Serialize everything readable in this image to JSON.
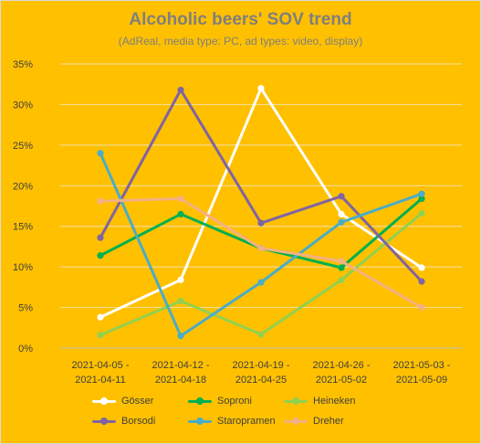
{
  "chart_data": {
    "type": "line",
    "title": "Alcoholic beers' SOV trend",
    "subtitle": "(AdReal, media type: PC, ad types: video, display)",
    "categories": [
      [
        "2021-04-05 -",
        "2021-04-11"
      ],
      [
        "2021-04-12 -",
        "2021-04-18"
      ],
      [
        "2021-04-19 -",
        "2021-04-25"
      ],
      [
        "2021-04-26 -",
        "2021-05-02"
      ],
      [
        "2021-05-03 -",
        "2021-05-09"
      ]
    ],
    "y_ticks": [
      "0%",
      "5%",
      "10%",
      "15%",
      "20%",
      "25%",
      "30%",
      "35%"
    ],
    "ylim": [
      0,
      35
    ],
    "y_unit": "%",
    "grid": true,
    "legend_position": "bottom",
    "series": [
      {
        "name": "Gösser",
        "color": "#FFFFFF",
        "values": [
          3.8,
          8.4,
          32.0,
          16.5,
          9.9
        ]
      },
      {
        "name": "Soproni",
        "color": "#00B050",
        "values": [
          11.4,
          16.5,
          12.3,
          9.9,
          18.4
        ]
      },
      {
        "name": "Heineken",
        "color": "#92D050",
        "values": [
          1.6,
          5.8,
          1.7,
          8.4,
          16.6
        ]
      },
      {
        "name": "Borsodi",
        "color": "#8064A2",
        "values": [
          13.6,
          31.8,
          15.4,
          18.7,
          8.2
        ]
      },
      {
        "name": "Staropramen",
        "color": "#4BACC6",
        "values": [
          24.0,
          1.5,
          8.1,
          15.5,
          19.0
        ]
      },
      {
        "name": "Dreher",
        "color": "#F4B183",
        "values": [
          18.1,
          18.4,
          12.3,
          10.7,
          5.0
        ]
      }
    ]
  }
}
